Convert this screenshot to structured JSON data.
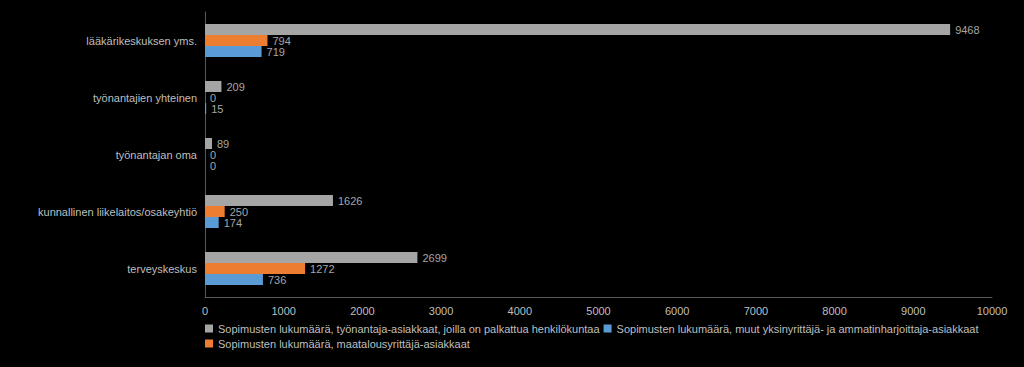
{
  "chart_data": {
    "type": "bar",
    "orientation": "horizontal",
    "categories": [
      "terveyskeskus",
      "kunnallinen liikelaitos/osakeyhtiö",
      "työnantajan oma",
      "työnantajien yhteinen",
      "lääkärikeskuksen yms."
    ],
    "series": [
      {
        "name": "Sopimusten lukumäärä, työnantaja-asiakkaat, joilla on palkattua henkilökuntaa",
        "color": "#a5a5a5",
        "values": [
          2699,
          1626,
          89,
          209,
          9468
        ]
      },
      {
        "name": "Sopimusten lukumäärä, maatalousyrittäjä-asiakkaat",
        "color": "#ed7d31",
        "values": [
          1272,
          250,
          0,
          0,
          794
        ]
      },
      {
        "name": "Sopimusten lukumäärä, muut yksinyrittäjä- ja ammatinharjoittaja-asiakkaat",
        "color": "#5b9bd5",
        "values": [
          736,
          174,
          0,
          15,
          719
        ]
      }
    ],
    "xlim": [
      0,
      10000
    ],
    "xticks": [
      0,
      1000,
      2000,
      3000,
      4000,
      5000,
      6000,
      7000,
      8000,
      9000,
      10000
    ],
    "grid": false,
    "legend": "bottom left",
    "data_labels": true
  }
}
